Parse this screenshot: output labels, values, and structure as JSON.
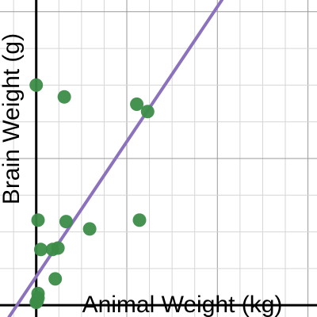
{
  "chart_data": {
    "type": "scatter",
    "xlabel": "Animal Weight (kg)",
    "ylabel": "Brain Weight (g)",
    "xlim": [
      -0.4,
      3.1
    ],
    "ylim": [
      -0.08,
      2.08
    ],
    "grid": true,
    "series": [
      {
        "kind": "points",
        "x": [
          0.0,
          0.31,
          1.11,
          1.23,
          0.02,
          0.33,
          0.59,
          1.14,
          0.05,
          0.18,
          0.24,
          0.21,
          0.02,
          0.02,
          0.01,
          0.0
        ],
        "y": [
          1.5,
          1.42,
          1.37,
          1.32,
          0.58,
          0.57,
          0.52,
          0.58,
          0.38,
          0.38,
          0.39,
          0.18,
          0.08,
          0.05,
          0.03,
          0.02
        ]
      },
      {
        "kind": "trendline",
        "x": [
          -0.3,
          2.05
        ],
        "y": [
          -0.08,
          2.08
        ]
      }
    ],
    "colors": {
      "points": "#3c8c48",
      "trendline": "#8c72bd",
      "grid_minor": "#d6d6d6",
      "grid_major": "#9a9a9a",
      "axis": "#000000"
    }
  }
}
